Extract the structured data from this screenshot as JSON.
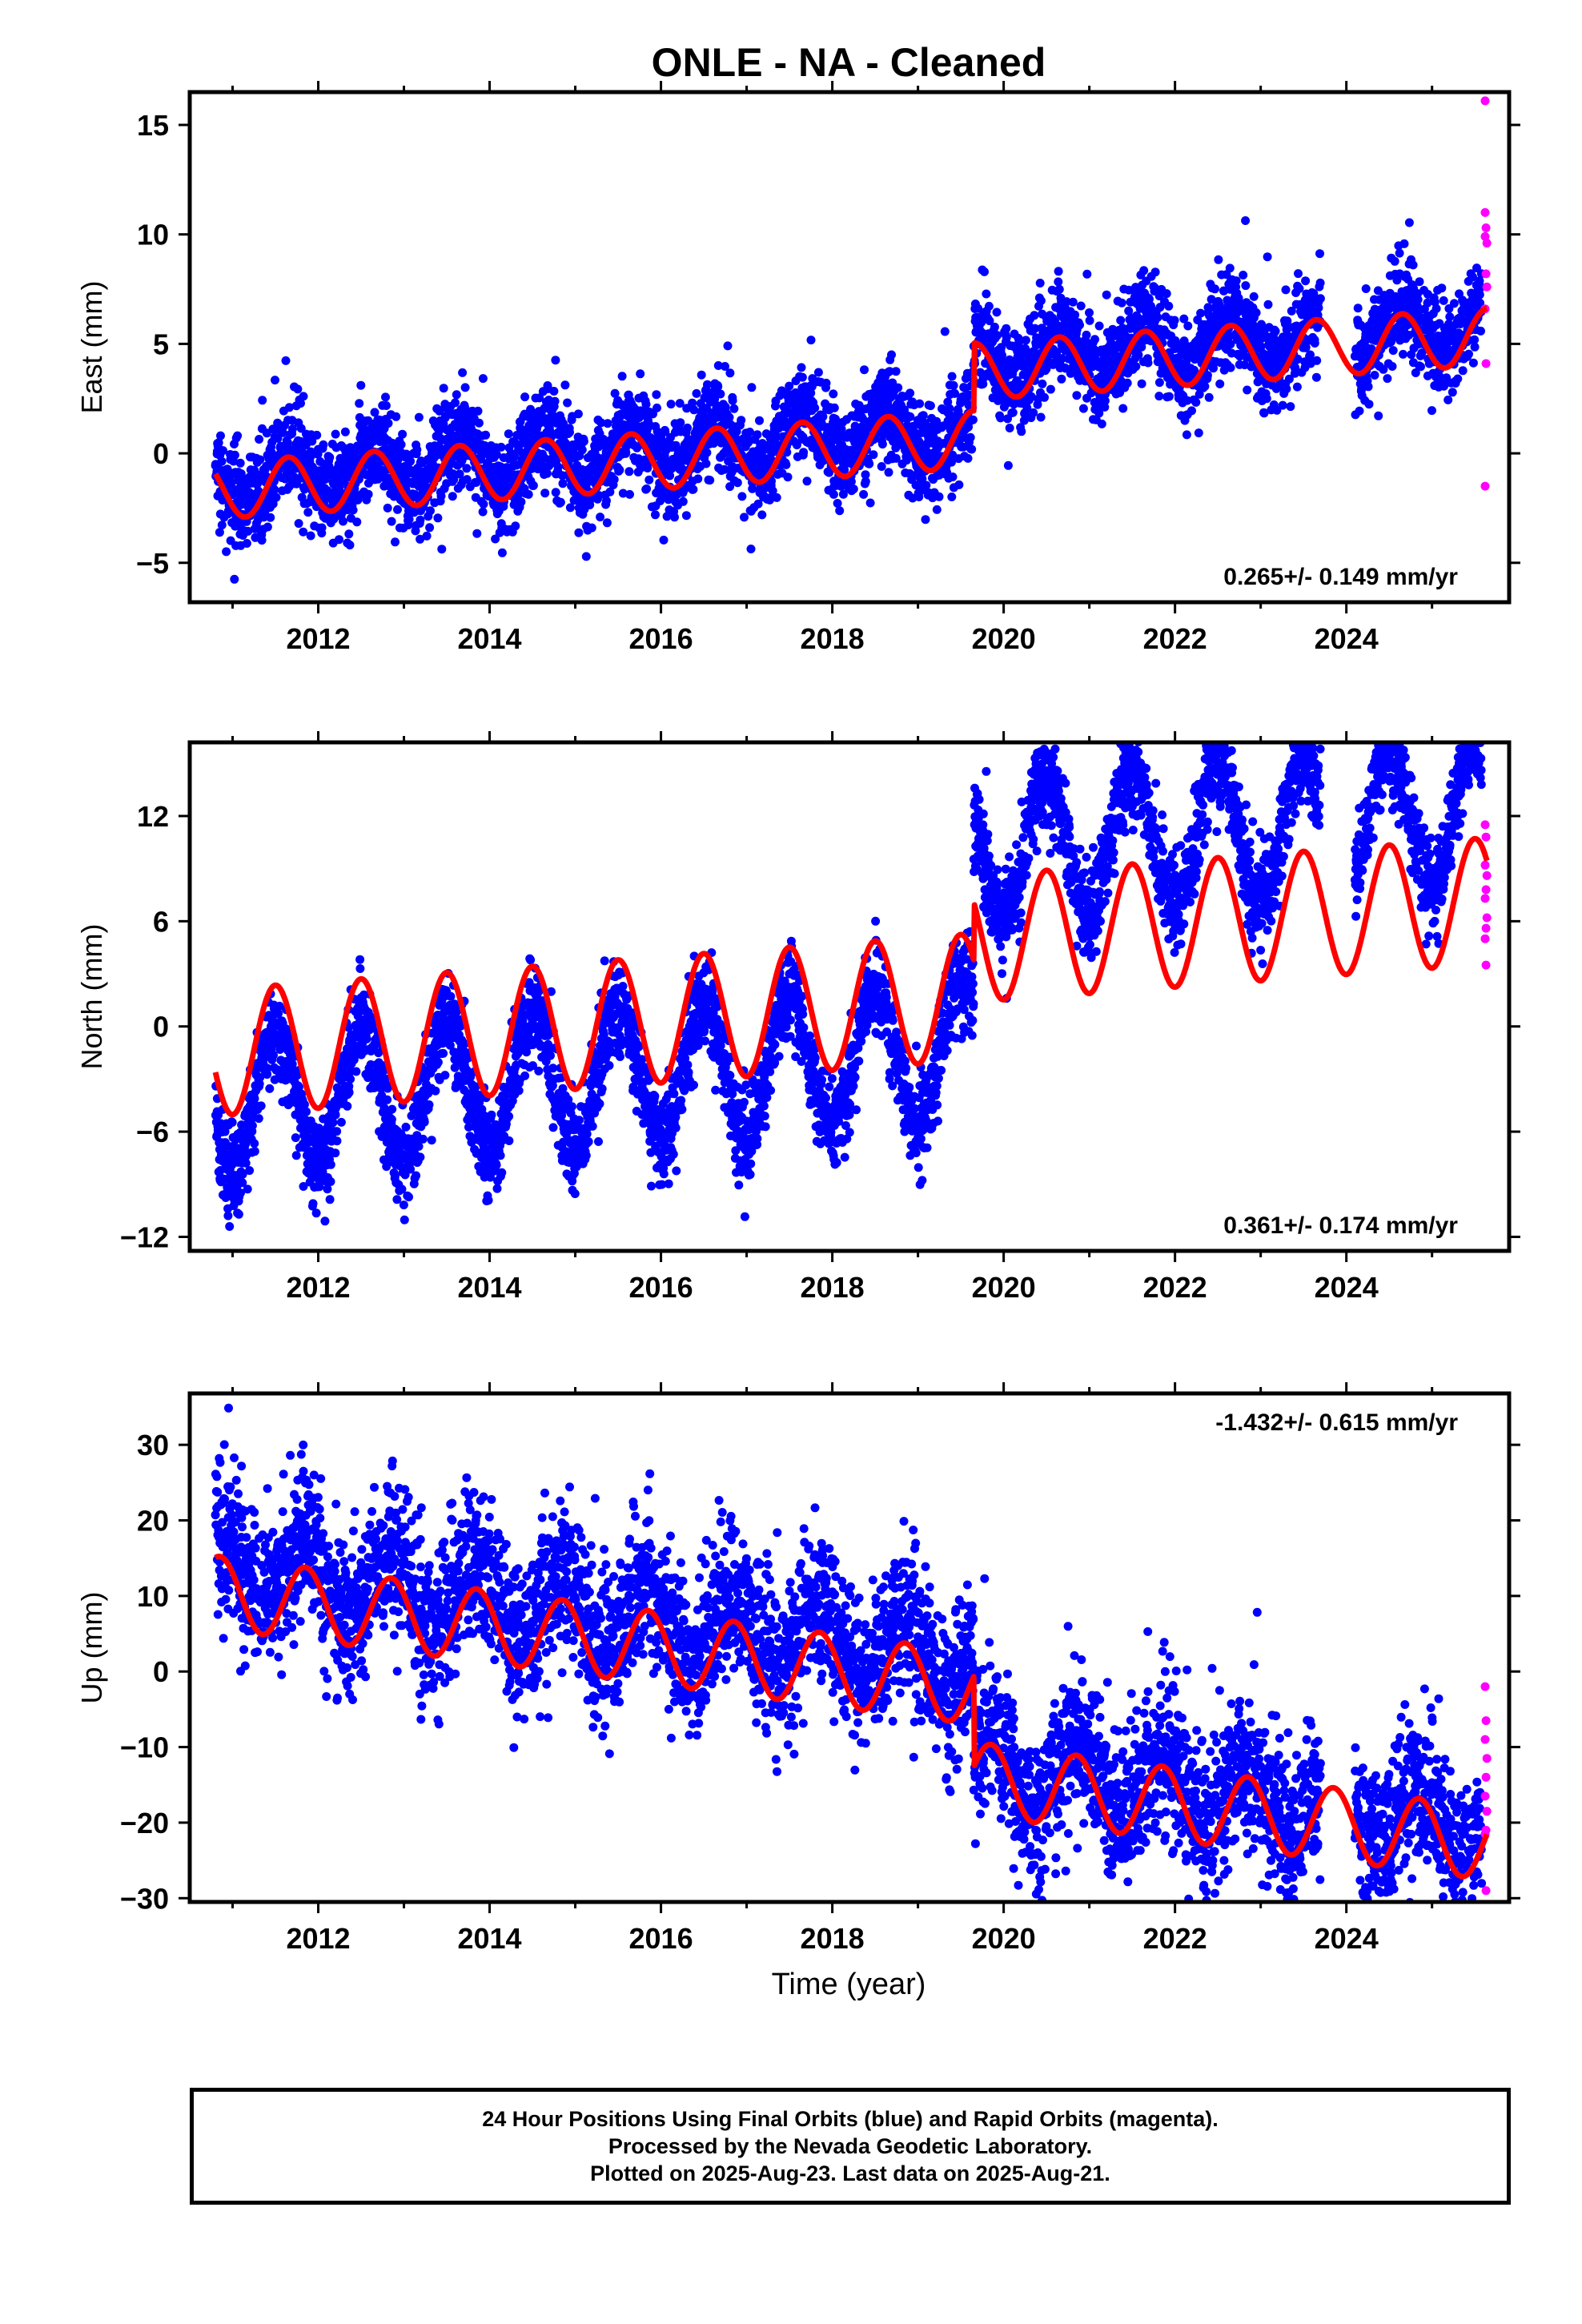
{
  "title": "ONLE  - NA - Cleaned",
  "xlabel": "Time (year)",
  "colors": {
    "final_orbits": "#0000ff",
    "rapid_orbits": "#ff00ff",
    "model_fit": "#ff0000",
    "frame": "#000000"
  },
  "footer": {
    "line1": "24 Hour Positions Using Final Orbits (blue) and Rapid Orbits (magenta).",
    "line2": "Processed by the Nevada Geodetic Laboratory.",
    "line3": "Plotted on 2025-Aug-23. Last data on 2025-Aug-21."
  },
  "chart_data": [
    {
      "type": "scatter",
      "component": "east",
      "ylabel": "East (mm)",
      "rate_label": "0.265+/- 0.149 mm/yr",
      "xlim": [
        2010.5,
        2025.9
      ],
      "ylim": [
        -6.8,
        16.5
      ],
      "xticks": [
        2012,
        2014,
        2016,
        2018,
        2020,
        2022,
        2024
      ],
      "yticks": [
        -5,
        0,
        5,
        10,
        15
      ],
      "data_start": 2010.8,
      "data_end": 2025.64,
      "gaps": [
        [
          2023.7,
          2024.1
        ]
      ],
      "series": [
        {
          "name": "Final Orbits",
          "color": "#0000ff",
          "offsets": [
            [
              2010.8,
              -1.2
            ],
            [
              2019.65,
              1.9
            ]
          ],
          "rate": 0.265,
          "annual_amplitude": 1.1,
          "annual_peak": 0.65,
          "scatter": 1.1
        },
        {
          "name": "Rapid Orbits",
          "color": "#ff00ff",
          "points": [
            [
              2025.62,
              16.1
            ],
            [
              2025.62,
              11.0
            ],
            [
              2025.63,
              10.3
            ],
            [
              2025.64,
              9.6
            ],
            [
              2025.62,
              9.9
            ],
            [
              2025.63,
              8.2
            ],
            [
              2025.64,
              7.6
            ],
            [
              2025.62,
              6.6
            ],
            [
              2025.63,
              4.1
            ],
            [
              2025.62,
              -1.5
            ]
          ]
        },
        {
          "name": "Model Fit",
          "color": "#ff0000",
          "offsets": [
            [
              2010.8,
              -1.7
            ],
            [
              2019.65,
              1.4
            ]
          ],
          "rate": 0.265,
          "annual_amplitude": 1.3,
          "annual_peak": 0.65
        }
      ]
    },
    {
      "type": "scatter",
      "component": "north",
      "ylabel": "North (mm)",
      "rate_label": "0.361+/- 0.174 mm/yr",
      "xlim": [
        2010.5,
        2025.9
      ],
      "ylim": [
        -12.8,
        16.2
      ],
      "xticks": [
        2012,
        2014,
        2016,
        2018,
        2020,
        2022,
        2024
      ],
      "yticks": [
        -12,
        -6,
        0,
        6,
        12
      ],
      "data_start": 2010.8,
      "data_end": 2025.64,
      "gaps": [
        [
          2023.7,
          2024.1
        ]
      ],
      "series": [
        {
          "name": "Final Orbits",
          "color": "#0000ff",
          "offsets": [
            [
              2010.8,
              -4.5
            ],
            [
              2019.65,
              6.8
            ]
          ],
          "rate": 0.361,
          "annual_amplitude": 4.0,
          "annual_peak": 0.5,
          "scatter": 1.3
        },
        {
          "name": "Rapid Orbits",
          "color": "#ff00ff",
          "points": [
            [
              2025.62,
              11.5
            ],
            [
              2025.63,
              10.8
            ],
            [
              2025.62,
              9.2
            ],
            [
              2025.64,
              8.6
            ],
            [
              2025.63,
              7.8
            ],
            [
              2025.62,
              7.3
            ],
            [
              2025.64,
              6.2
            ],
            [
              2025.63,
              5.6
            ],
            [
              2025.62,
              5.0
            ],
            [
              2025.63,
              3.5
            ]
          ]
        },
        {
          "name": "Model Fit",
          "color": "#ff0000",
          "offsets": [
            [
              2010.8,
              -1.5
            ],
            [
              2019.65,
              1.8
            ]
          ],
          "rate": 0.361,
          "annual_amplitude": 3.6,
          "annual_peak": 0.5
        }
      ]
    },
    {
      "type": "scatter",
      "component": "up",
      "ylabel": "Up (mm)",
      "rate_label": "-1.432+/- 0.615 mm/yr",
      "xlim": [
        2010.5,
        2025.9
      ],
      "ylim": [
        -30.5,
        36.8
      ],
      "xticks": [
        2012,
        2014,
        2016,
        2018,
        2020,
        2022,
        2024
      ],
      "yticks": [
        -30,
        -20,
        -10,
        0,
        10,
        20,
        30
      ],
      "data_start": 2010.8,
      "data_end": 2025.64,
      "gaps": [
        [
          2023.7,
          2024.1
        ]
      ],
      "series": [
        {
          "name": "Final Orbits",
          "color": "#0000ff",
          "offsets": [
            [
              2010.8,
              14.0
            ],
            [
              2019.65,
              0.5
            ]
          ],
          "rate": -1.432,
          "annual_amplitude": 4.8,
          "annual_peak": 0.85,
          "scatter": 5.0
        },
        {
          "name": "Rapid Orbits",
          "color": "#ff00ff",
          "points": [
            [
              2025.62,
              -2.0
            ],
            [
              2025.63,
              -6.5
            ],
            [
              2025.62,
              -9.0
            ],
            [
              2025.64,
              -11.5
            ],
            [
              2025.63,
              -14.0
            ],
            [
              2025.62,
              -16.5
            ],
            [
              2025.64,
              -18.5
            ],
            [
              2025.63,
              -21.0
            ],
            [
              2025.62,
              -21.5
            ],
            [
              2025.63,
              -29.0
            ]
          ]
        },
        {
          "name": "Model Fit",
          "color": "#ff0000",
          "offsets": [
            [
              2010.8,
              10.5
            ],
            [
              2019.65,
              -1.5
            ]
          ],
          "rate": -1.432,
          "annual_amplitude": 4.8,
          "annual_peak": 0.85
        }
      ]
    }
  ]
}
